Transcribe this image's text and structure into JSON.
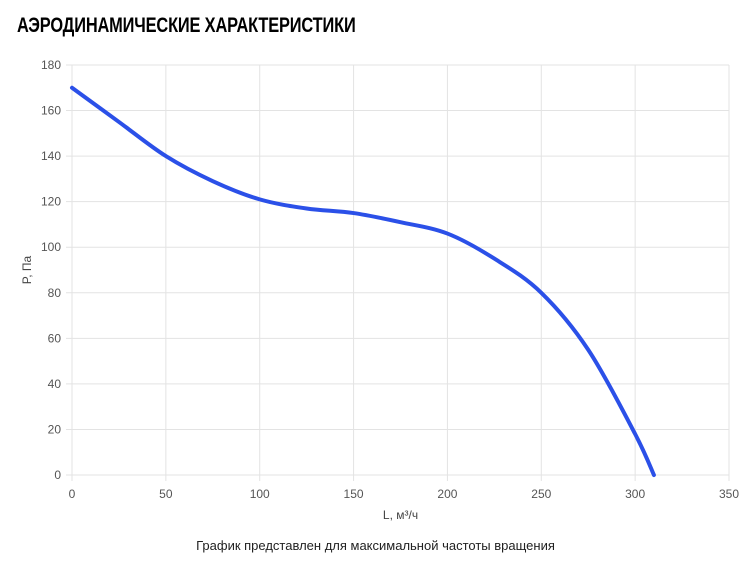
{
  "header": {
    "title": "АЭРОДИНАМИЧЕСКИЕ ХАРАКТЕРИСТИКИ"
  },
  "footer": {
    "caption": "График представлен для максимальной частоты вращения"
  },
  "chart_data": {
    "type": "line",
    "xlabel": "L, м³/ч",
    "ylabel": "P, Па",
    "xlim": [
      0,
      350
    ],
    "ylim": [
      0,
      180
    ],
    "xticks": [
      0,
      50,
      100,
      150,
      200,
      250,
      300,
      350
    ],
    "yticks": [
      0,
      20,
      40,
      60,
      80,
      100,
      120,
      140,
      160,
      180
    ],
    "grid": true,
    "line_color": "#2b50e8",
    "series": [
      {
        "x": [
          0,
          25,
          50,
          75,
          100,
          125,
          150,
          175,
          200,
          225,
          250,
          275,
          300,
          310
        ],
        "y": [
          170,
          155,
          140,
          129,
          121,
          117,
          115,
          111,
          106,
          95,
          80,
          55,
          18,
          0
        ]
      }
    ]
  }
}
